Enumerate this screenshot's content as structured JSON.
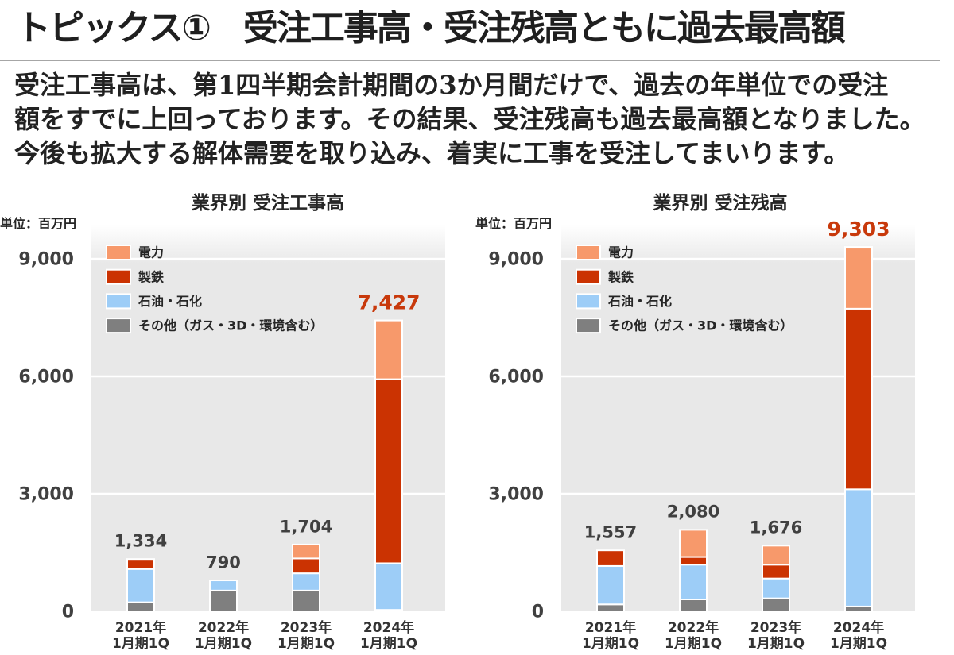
{
  "title": "トピックス①　受注工事高・受注残高ともに過去最高額",
  "body": {
    "lines": [
      "受注工事高は、第1四半期会計期間の3か月間だけで、過去の年単位での受注",
      "額をすでに上回っております。その結果、受注残高も過去最高額となりました。",
      "今後も拡大する解体需要を取り込み、着実に工事を受注してまいります。"
    ]
  },
  "chart_data": [
    {
      "type": "bar",
      "stacked": true,
      "title": "業界別 受注工事高",
      "ylabel": "単位：百万円",
      "ylim": [
        0,
        9000
      ],
      "yticks": [
        0,
        3000,
        6000,
        9000
      ],
      "ytick_labels": [
        "0",
        "3,000",
        "6,000",
        "9,000"
      ],
      "grid": true,
      "legend_position": "top-left",
      "categories": [
        [
          "2021年",
          "1月期1Q"
        ],
        [
          "2022年",
          "1月期1Q"
        ],
        [
          "2023年",
          "1月期1Q"
        ],
        [
          "2024年",
          "1月期1Q"
        ]
      ],
      "series": [
        {
          "name": "電力",
          "color": "#F7996B",
          "values": [
            0,
            0,
            354,
            1500
          ]
        },
        {
          "name": "製鉄",
          "color": "#CB3302",
          "values": [
            254,
            0,
            380,
            4700
          ]
        },
        {
          "name": "石油・石化",
          "color": "#9DCDF7",
          "values": [
            850,
            260,
            440,
            1190
          ]
        },
        {
          "name": "その他（ガス・3D・環境含む）",
          "color": "#7F7F7F",
          "values": [
            230,
            530,
            530,
            37
          ]
        }
      ],
      "totals": [
        1334,
        790,
        1704,
        7427
      ],
      "total_labels": [
        "1,334",
        "790",
        "1,704",
        "7,427"
      ],
      "total_label_colors": [
        "#404040",
        "#404040",
        "#404040",
        "#C8390B"
      ]
    },
    {
      "type": "bar",
      "stacked": true,
      "title": "業界別 受注残高",
      "ylabel": "単位：百万円",
      "ylim": [
        0,
        9000
      ],
      "yticks": [
        0,
        3000,
        6000,
        9000
      ],
      "ytick_labels": [
        "0",
        "3,000",
        "6,000",
        "9,000"
      ],
      "grid": true,
      "legend_position": "top-left",
      "categories": [
        [
          "2021年",
          "1月期1Q"
        ],
        [
          "2022年",
          "1月期1Q"
        ],
        [
          "2023年",
          "1月期1Q"
        ],
        [
          "2024年",
          "1月期1Q"
        ]
      ],
      "series": [
        {
          "name": "電力",
          "color": "#F7996B",
          "values": [
            0,
            693,
            485,
            1577
          ]
        },
        {
          "name": "製鉄",
          "color": "#CB3302",
          "values": [
            400,
            195,
            353,
            4611
          ]
        },
        {
          "name": "石油・石化",
          "color": "#9DCDF7",
          "values": [
            980,
            888,
            507,
            2992
          ]
        },
        {
          "name": "その他（ガス・3D・環境含む）",
          "color": "#7F7F7F",
          "values": [
            177,
            304,
            331,
            123
          ]
        }
      ],
      "totals": [
        1557,
        2080,
        1676,
        9303
      ],
      "total_labels": [
        "1,557",
        "2,080",
        "1,676",
        "9,303"
      ],
      "total_label_colors": [
        "#404040",
        "#404040",
        "#404040",
        "#C8390B"
      ]
    }
  ]
}
